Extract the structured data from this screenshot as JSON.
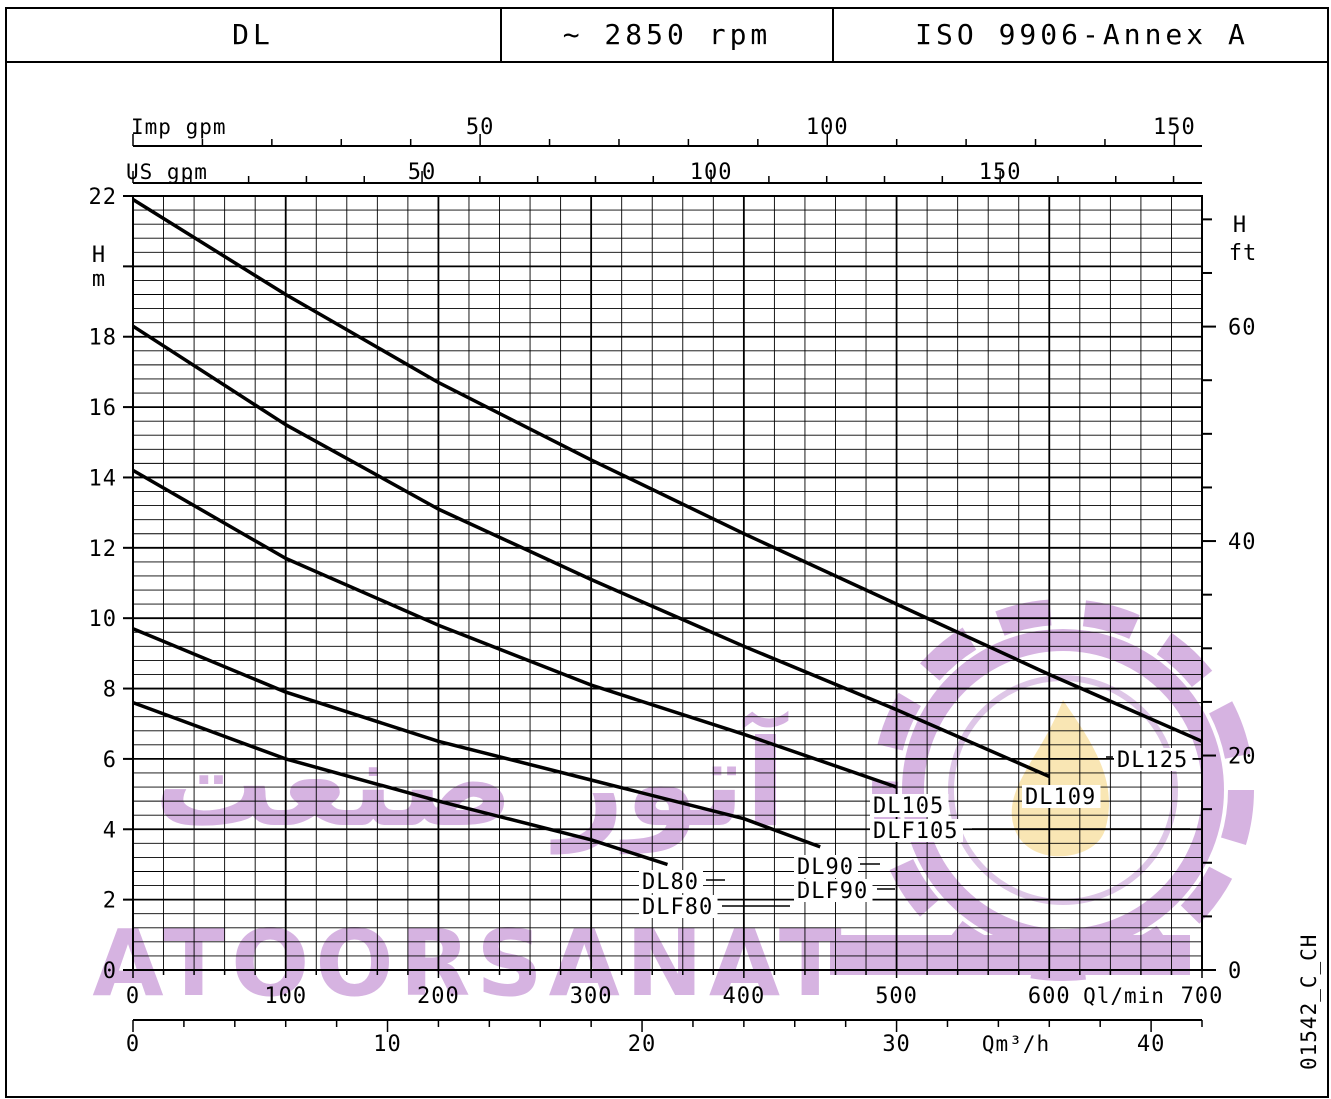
{
  "header": {
    "model": "DL",
    "speed": "~ 2850 rpm",
    "standard": "ISO 9906-Annex A"
  },
  "drawing_code": "01542_C_CH",
  "watermark": {
    "latin": "ATOORSANAT",
    "farsi": "آتور صنعت",
    "color": "#cfa6dc",
    "flame_color": "#f8e2a8"
  },
  "chart_data": {
    "type": "line",
    "grid": true,
    "x_main": {
      "unit_label": "Ql/min",
      "range": [
        0,
        700
      ],
      "ticks": [
        "0",
        "100",
        "200",
        "300",
        "400",
        "500",
        "600",
        "700"
      ]
    },
    "x_m3h": {
      "unit_label": "Qm³/h",
      "range": [
        0,
        42
      ],
      "ticks": [
        "0",
        "10",
        "20",
        "30",
        "40"
      ]
    },
    "x_us_gpm": {
      "unit_label": "US gpm",
      "ticks": [
        "50",
        "100",
        "150"
      ]
    },
    "x_imp_gpm": {
      "unit_label": "Imp gpm",
      "ticks": [
        "50",
        "100",
        "150"
      ]
    },
    "y_m": {
      "label_top": "H",
      "label_bottom": "m",
      "range": [
        0,
        22
      ],
      "ticks": [
        "0",
        "2",
        "4",
        "6",
        "8",
        "10",
        "12",
        "14",
        "16",
        "18",
        "22"
      ]
    },
    "y_ft": {
      "label_top": "H",
      "label_bottom": "ft",
      "ticks": [
        "0",
        "20",
        "40",
        "60"
      ]
    },
    "series": [
      {
        "name": "DL125",
        "x": [
          0,
          100,
          200,
          300,
          400,
          500,
          600,
          700
        ],
        "y": [
          21.9,
          19.2,
          16.7,
          14.5,
          12.4,
          10.4,
          8.4,
          6.5
        ]
      },
      {
        "name": "DL109",
        "x": [
          0,
          100,
          200,
          300,
          400,
          500,
          600
        ],
        "y": [
          18.3,
          15.5,
          13.1,
          11.1,
          9.2,
          7.4,
          5.5
        ]
      },
      {
        "name": "DL105 / DLF105",
        "x": [
          0,
          100,
          200,
          300,
          400,
          500
        ],
        "y": [
          14.2,
          11.7,
          9.8,
          8.1,
          6.7,
          5.2
        ]
      },
      {
        "name": "DL90 / DLF90",
        "x": [
          0,
          100,
          200,
          300,
          400,
          450
        ],
        "y": [
          9.7,
          7.9,
          6.5,
          5.4,
          4.3,
          3.5
        ]
      },
      {
        "name": "DL80 / DLF80",
        "x": [
          0,
          100,
          200,
          300,
          350
        ],
        "y": [
          7.6,
          6.0,
          4.8,
          3.7,
          3.0
        ]
      }
    ],
    "curve_labels": [
      {
        "text": "DL125"
      },
      {
        "text": "DL109"
      },
      {
        "text": "DL105"
      },
      {
        "text": "DLF105"
      },
      {
        "text": "DL90"
      },
      {
        "text": "DLF90"
      },
      {
        "text": "DL80"
      },
      {
        "text": "DLF80"
      }
    ]
  }
}
